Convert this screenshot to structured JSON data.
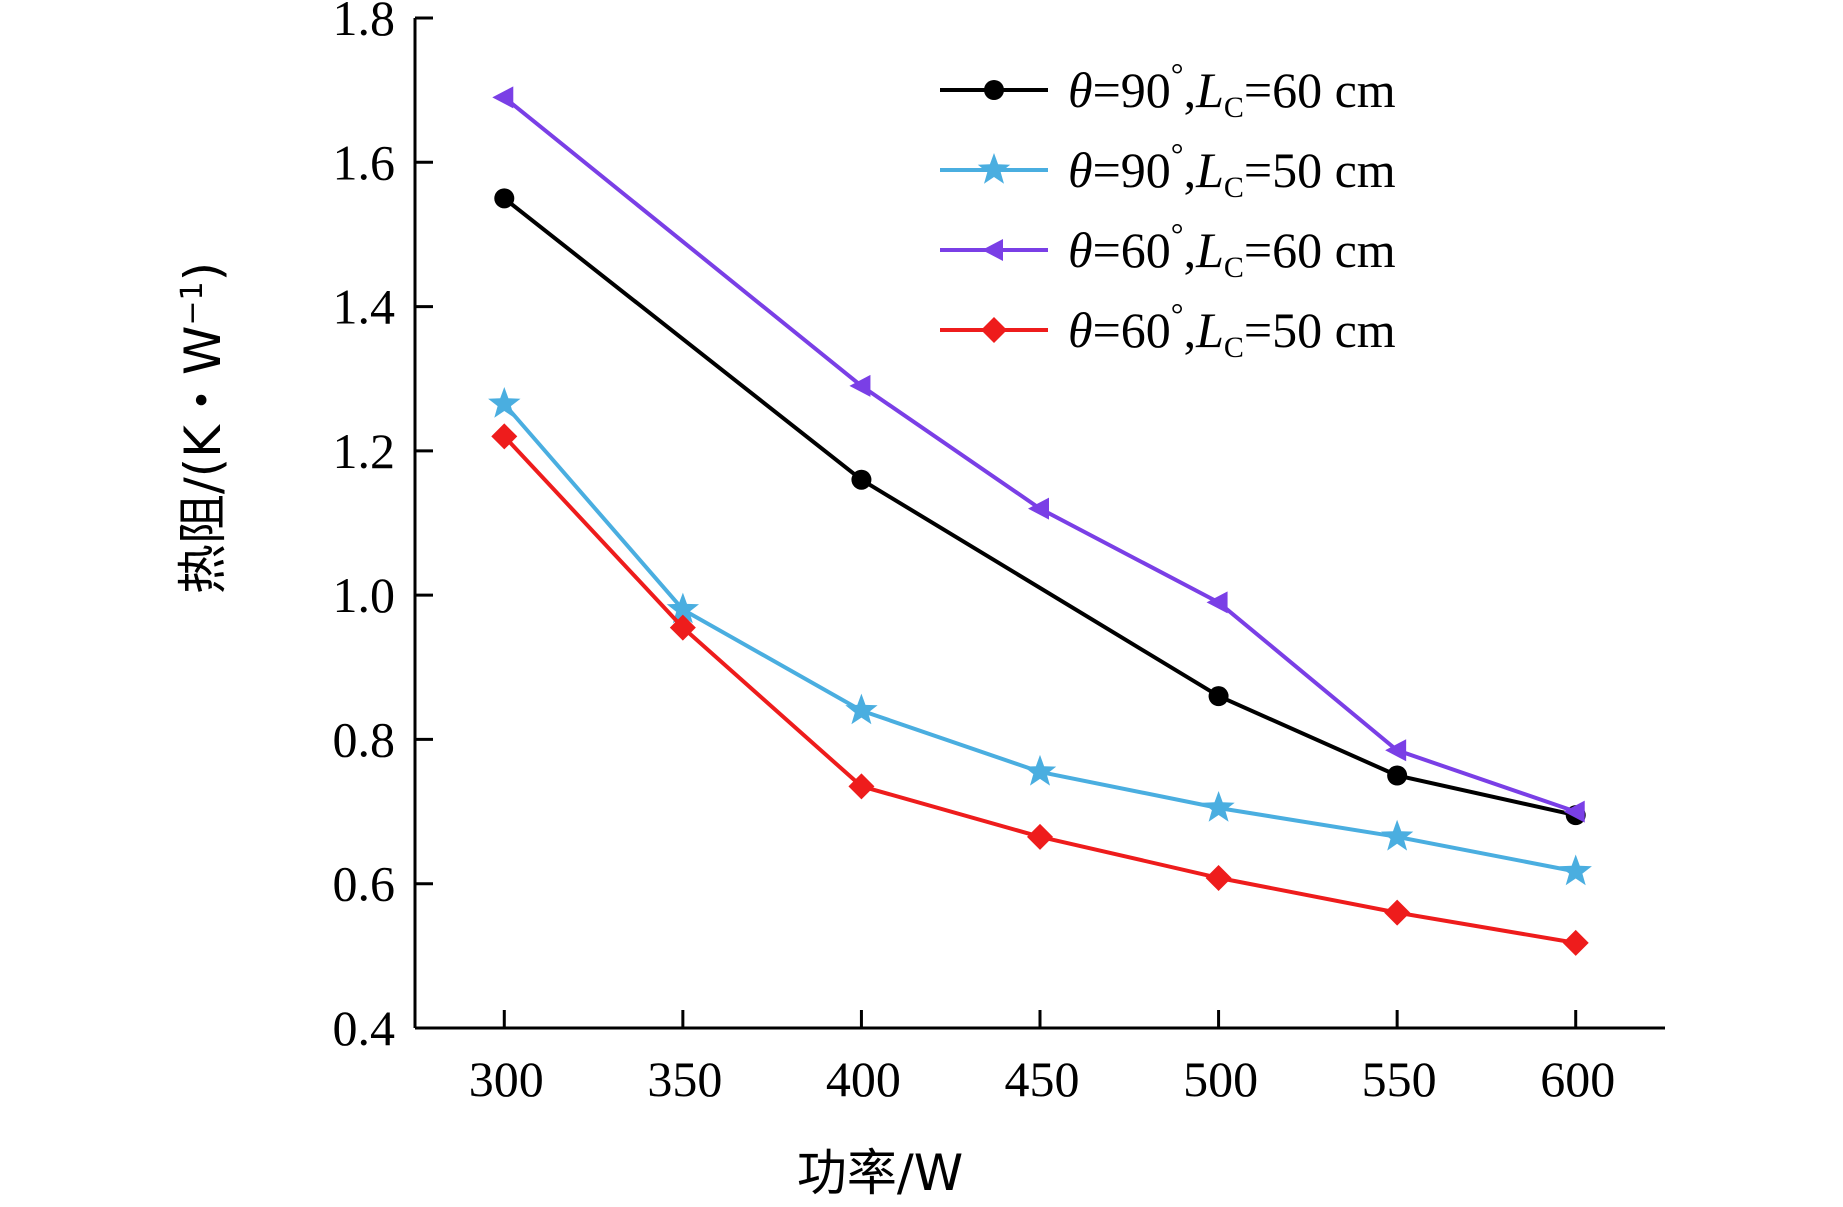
{
  "chart_data": {
    "type": "line",
    "title": "",
    "xlabel": "功率/W",
    "ylabel": "热阻/(K・W",
    "ylabel_sup": "−1",
    "ylabel_close": ")",
    "xlim": [
      275,
      625
    ],
    "ylim": [
      0.4,
      1.8
    ],
    "x": [
      300,
      350,
      400,
      450,
      500,
      550,
      600
    ],
    "x_ticks": [
      300,
      350,
      400,
      450,
      500,
      550,
      600
    ],
    "y_ticks": [
      0.4,
      0.6,
      0.8,
      1.0,
      1.2,
      1.4,
      1.6,
      1.8
    ],
    "grid": false,
    "legend_position": "top-right",
    "series": [
      {
        "name_theta": "θ",
        "name_angle": "=90",
        "name_deg": "°",
        "name_sep": ",",
        "name_L": "L",
        "name_sub": "C",
        "name_len": "=60 cm",
        "color": "#000000",
        "marker": "circle",
        "x": [
          300,
          400,
          500,
          550,
          600
        ],
        "values": [
          1.55,
          1.16,
          0.86,
          0.75,
          0.695
        ]
      },
      {
        "name_theta": "θ",
        "name_angle": "=90",
        "name_deg": "°",
        "name_sep": ",",
        "name_L": "L",
        "name_sub": "C",
        "name_len": "=50 cm",
        "color": "#4aaee0",
        "marker": "star",
        "x": [
          300,
          350,
          400,
          450,
          500,
          550,
          600
        ],
        "values": [
          1.265,
          0.98,
          0.84,
          0.755,
          0.705,
          0.665,
          0.617
        ]
      },
      {
        "name_theta": "θ",
        "name_angle": "=60",
        "name_deg": "°",
        "name_sep": ",",
        "name_L": "L",
        "name_sub": "C",
        "name_len": "=60 cm",
        "color": "#7a3fe6",
        "marker": "triangle-left",
        "x": [
          300,
          400,
          450,
          500,
          550,
          600
        ],
        "values": [
          1.69,
          1.29,
          1.12,
          0.99,
          0.785,
          0.7
        ]
      },
      {
        "name_theta": "θ",
        "name_angle": "=60",
        "name_deg": "°",
        "name_sep": ",",
        "name_L": "L",
        "name_sub": "C",
        "name_len": "=50 cm",
        "color": "#ee1c1c",
        "marker": "diamond",
        "x": [
          300,
          350,
          400,
          450,
          500,
          550,
          600
        ],
        "values": [
          1.22,
          0.955,
          0.735,
          0.665,
          0.608,
          0.56,
          0.518
        ]
      }
    ]
  }
}
